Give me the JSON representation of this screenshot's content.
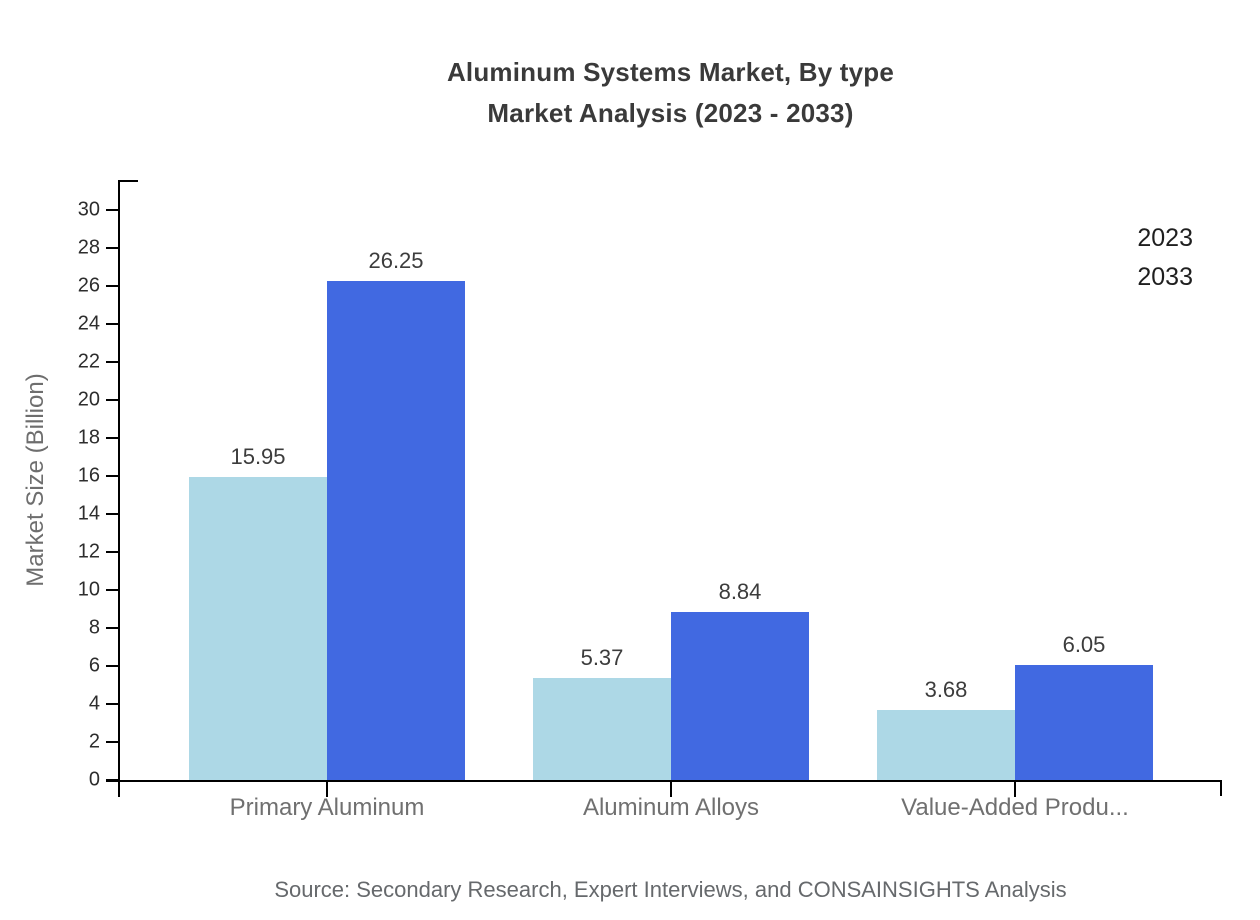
{
  "title": {
    "line1": "Aluminum Systems Market, By type",
    "line2": "Market Analysis (2023 - 2033)"
  },
  "source": "Source: Secondary Research, Expert Interviews, and CONSAINSIGHTS Analysis",
  "chart_data": {
    "type": "bar",
    "title": "Aluminum Systems Market, By type — Market Analysis (2023 - 2033)",
    "categories": [
      "Primary Aluminum",
      "Aluminum Alloys",
      "Value-Added Produ..."
    ],
    "series": [
      {
        "name": "2023",
        "color": "#ADD8E6",
        "values": [
          15.95,
          5.37,
          3.68
        ]
      },
      {
        "name": "2033",
        "color": "#4169E1",
        "values": [
          26.25,
          8.84,
          6.05
        ]
      }
    ],
    "value_labels": [
      "15.95",
      "26.25",
      "5.37",
      "8.84",
      "3.68",
      "6.05"
    ],
    "xlabel": "",
    "ylabel": "Market Size (Billion)",
    "ylim": [
      0,
      30
    ],
    "yticks": [
      0,
      2,
      4,
      6,
      8,
      10,
      12,
      14,
      16,
      18,
      20,
      22,
      24,
      26,
      28,
      30
    ],
    "grid": false,
    "legend_position": "top-right",
    "axis_color": "#000000"
  }
}
